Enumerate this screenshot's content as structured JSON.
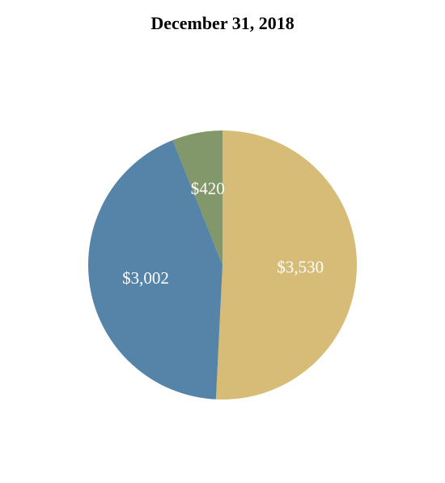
{
  "chart_data": {
    "type": "pie",
    "title": "December 31, 2018",
    "slices": [
      {
        "label": "$3,530",
        "value": 3530,
        "color": "#d6bc76"
      },
      {
        "label": "$3,002",
        "value": 3002,
        "color": "#5683a8"
      },
      {
        "label": "$420",
        "value": 420,
        "color": "#82976a"
      }
    ],
    "start_angle": "12 o'clock",
    "direction": "clockwise",
    "legend": "none"
  }
}
